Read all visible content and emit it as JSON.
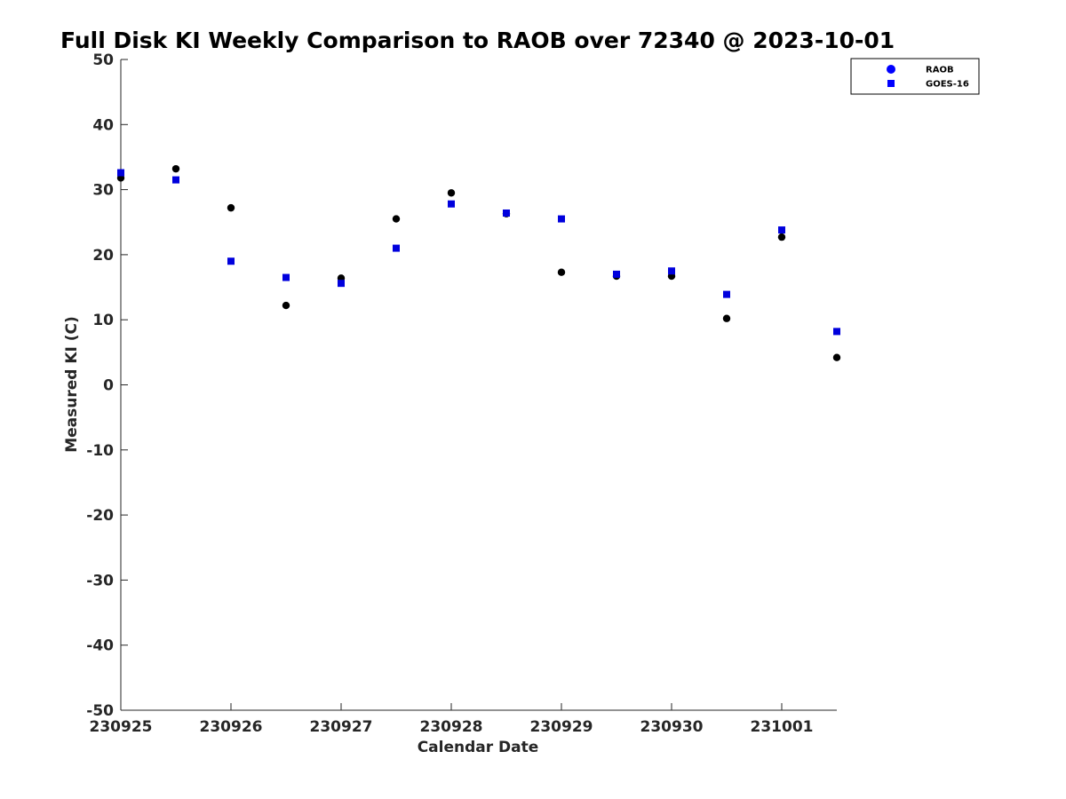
{
  "chart_data": {
    "type": "scatter",
    "title": "Full Disk KI Weekly Comparison to RAOB over 72340 @ 2023-10-01",
    "xlabel": "Calendar Date",
    "ylabel": "Measured KI (C)",
    "x_tick_labels": [
      "230925",
      "230926",
      "230927",
      "230928",
      "230929",
      "230930",
      "231001"
    ],
    "y_ticks": [
      50,
      40,
      30,
      20,
      10,
      0,
      -10,
      -20,
      -30,
      -40,
      -50
    ],
    "ylim": [
      -50,
      50
    ],
    "xlim_days": [
      0,
      6.5
    ],
    "grid": false,
    "legend_position": "top-right",
    "series": [
      {
        "name": "RAOB",
        "marker": "circle",
        "legend_color": "#0000ff",
        "marker_color": "#000000",
        "x": [
          "2023-09-25 00Z",
          "2023-09-25 12Z",
          "2023-09-26 00Z",
          "2023-09-26 12Z",
          "2023-09-27 00Z",
          "2023-09-27 12Z",
          "2023-09-28 00Z",
          "2023-09-28 12Z",
          "2023-09-29 00Z",
          "2023-09-29 12Z",
          "2023-09-30 00Z",
          "2023-09-30 12Z",
          "2023-10-01 00Z",
          "2023-10-01 12Z"
        ],
        "values": [
          31.8,
          33.2,
          27.2,
          12.2,
          16.4,
          25.5,
          29.5,
          26.3,
          17.3,
          16.7,
          16.7,
          10.2,
          22.7,
          4.2
        ]
      },
      {
        "name": "GOES-16",
        "marker": "square",
        "legend_color": "#0000ff",
        "marker_color": "#0000dd",
        "x": [
          "2023-09-25 00Z",
          "2023-09-25 12Z",
          "2023-09-26 00Z",
          "2023-09-26 12Z",
          "2023-09-27 00Z",
          "2023-09-27 12Z",
          "2023-09-28 00Z",
          "2023-09-28 12Z",
          "2023-09-29 00Z",
          "2023-09-29 12Z",
          "2023-09-30 00Z",
          "2023-09-30 12Z",
          "2023-10-01 00Z",
          "2023-10-01 12Z"
        ],
        "values": [
          32.6,
          31.5,
          19.0,
          16.5,
          15.6,
          21.0,
          27.8,
          26.4,
          25.5,
          17.0,
          17.5,
          13.9,
          23.8,
          8.2
        ]
      }
    ]
  }
}
